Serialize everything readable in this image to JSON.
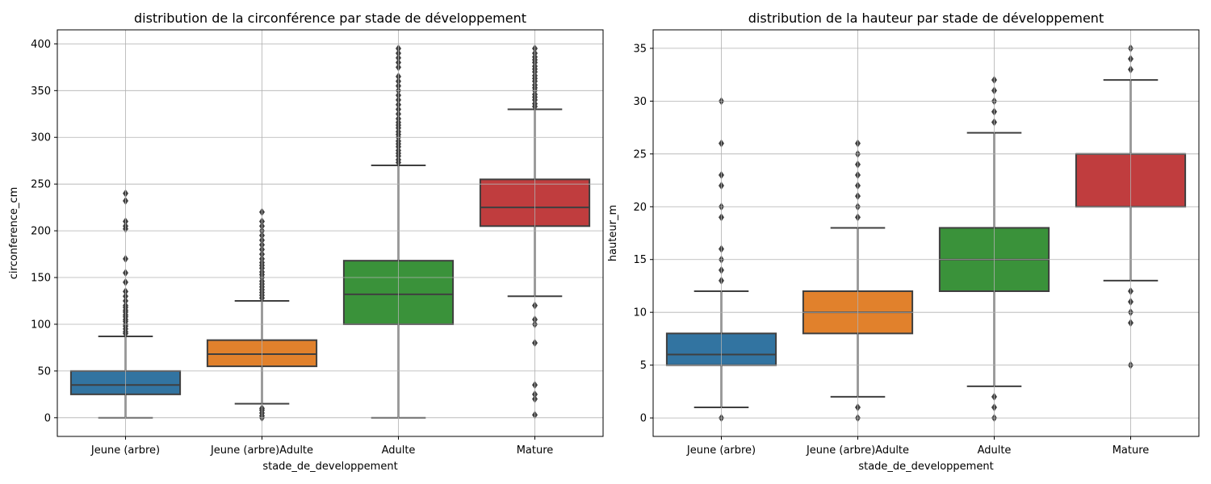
{
  "chart_data": [
    {
      "type": "box",
      "title": "distribution de la circonférence par stade de développement",
      "xlabel": "stade_de_developpement",
      "ylabel": "circonference_cm",
      "ylim": [
        -20,
        415
      ],
      "yticks": [
        0,
        50,
        100,
        150,
        200,
        250,
        300,
        350,
        400
      ],
      "grid": true,
      "categories": [
        "Jeune (arbre)",
        "Jeune (arbre)Adulte",
        "Adulte",
        "Mature"
      ],
      "colors": [
        "#3274a1",
        "#e1812c",
        "#3a923a",
        "#c03d3e"
      ],
      "boxes": [
        {
          "whisker_low": 0,
          "q1": 25,
          "median": 35,
          "q3": 50,
          "whisker_high": 87,
          "outliers": [
            90,
            92,
            95,
            98,
            100,
            103,
            105,
            108,
            110,
            113,
            115,
            118,
            120,
            125,
            130,
            135,
            145,
            155,
            170,
            202,
            205,
            210,
            232,
            240
          ]
        },
        {
          "whisker_low": 15,
          "q1": 55,
          "median": 68,
          "q3": 83,
          "whisker_high": 125,
          "outliers": [
            0,
            2,
            5,
            8,
            10,
            128,
            131,
            134,
            137,
            140,
            143,
            146,
            150,
            153,
            156,
            160,
            163,
            166,
            170,
            175,
            180,
            185,
            190,
            195,
            200,
            205,
            210,
            220
          ]
        },
        {
          "whisker_low": 0,
          "q1": 100,
          "median": 132,
          "q3": 168,
          "whisker_high": 270,
          "outliers": [
            273,
            276,
            280,
            283,
            286,
            290,
            293,
            296,
            300,
            303,
            306,
            310,
            313,
            316,
            320,
            325,
            330,
            335,
            340,
            345,
            350,
            355,
            360,
            365,
            375,
            380,
            385,
            390,
            395
          ]
        },
        {
          "whisker_low": 130,
          "q1": 205,
          "median": 225,
          "q3": 255,
          "whisker_high": 330,
          "outliers": [
            3,
            20,
            25,
            35,
            80,
            100,
            105,
            120,
            333,
            336,
            340,
            343,
            346,
            350,
            353,
            356,
            360,
            363,
            366,
            370,
            373,
            376,
            380,
            383,
            386,
            390,
            395
          ]
        }
      ]
    },
    {
      "type": "box",
      "title": "distribution de la hauteur par stade de développement",
      "xlabel": "stade_de_developpement",
      "ylabel": "hauteur_m",
      "ylim": [
        -1.75,
        36.75
      ],
      "yticks": [
        0,
        5,
        10,
        15,
        20,
        25,
        30,
        35
      ],
      "grid": true,
      "categories": [
        "Jeune (arbre)",
        "Jeune (arbre)Adulte",
        "Adulte",
        "Mature"
      ],
      "colors": [
        "#3274a1",
        "#e1812c",
        "#3a923a",
        "#c03d3e"
      ],
      "boxes": [
        {
          "whisker_low": 1,
          "q1": 5,
          "median": 6,
          "q3": 8,
          "whisker_high": 12,
          "outliers": [
            0,
            13,
            14,
            15,
            16,
            19,
            20,
            22,
            23,
            26,
            30
          ]
        },
        {
          "whisker_low": 2,
          "q1": 8,
          "median": 10,
          "q3": 12,
          "whisker_high": 18,
          "outliers": [
            0,
            1,
            19,
            20,
            21,
            22,
            23,
            24,
            25,
            26
          ]
        },
        {
          "whisker_low": 3,
          "q1": 12,
          "median": 15,
          "q3": 18,
          "whisker_high": 27,
          "outliers": [
            0,
            1,
            2,
            28,
            29,
            30,
            31,
            32
          ]
        },
        {
          "whisker_low": 13,
          "q1": 20,
          "median": 25,
          "q3": 25,
          "whisker_high": 32,
          "outliers": [
            5,
            9,
            10,
            11,
            12,
            33,
            34,
            35
          ]
        }
      ]
    }
  ]
}
